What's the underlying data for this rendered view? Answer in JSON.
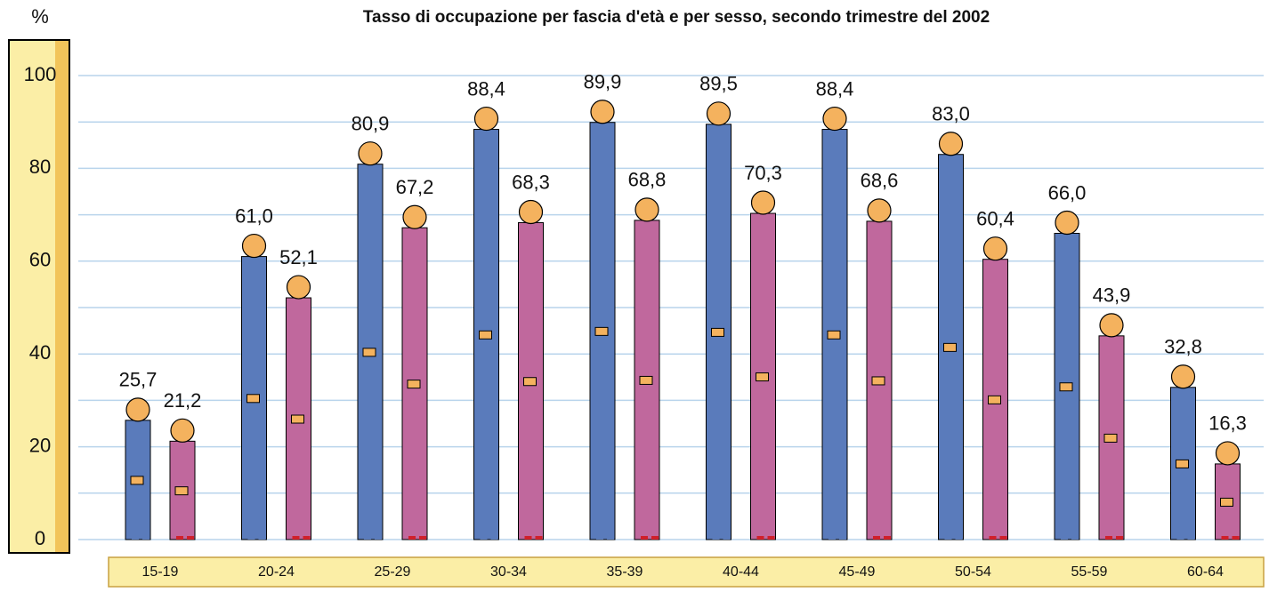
{
  "chart_data": {
    "type": "bar",
    "title": "Tasso di occupazione per fascia d'età e per sesso, secondo trimestre del 2002",
    "y_label": "%",
    "categories": [
      "15-19",
      "20-24",
      "25-29",
      "30-34",
      "35-39",
      "40-44",
      "45-49",
      "50-54",
      "55-59",
      "60-64"
    ],
    "series": [
      {
        "color": "#5a7bbb",
        "values": [
          25.7,
          61.0,
          80.9,
          88.4,
          89.9,
          89.5,
          88.4,
          83.0,
          66.0,
          32.8
        ],
        "value_labels": [
          "25,7",
          "61,0",
          "80,9",
          "88,4",
          "89,9",
          "89,5",
          "88,4",
          "83,0",
          "66,0",
          "32,8"
        ]
      },
      {
        "color": "#c0689d",
        "values": [
          21.2,
          52.1,
          67.2,
          68.3,
          68.8,
          70.3,
          68.6,
          60.4,
          43.9,
          16.3
        ],
        "value_labels": [
          "21,2",
          "52,1",
          "67,2",
          "68,3",
          "68,8",
          "70,3",
          "68,6",
          "60,4",
          "43,9",
          "16,3"
        ]
      }
    ],
    "ylim": [
      0,
      100
    ],
    "yticks": [
      0,
      20,
      40,
      60,
      80,
      100
    ],
    "minor_yticks": [
      10,
      30,
      50,
      70,
      90
    ],
    "grid": true
  }
}
